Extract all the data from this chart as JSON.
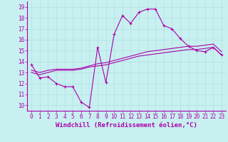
{
  "xlabel": "Windchill (Refroidissement éolien,°C)",
  "bg_color": "#c8f0f0",
  "line_color": "#aa00aa",
  "xlim": [
    -0.5,
    23.5
  ],
  "ylim": [
    9.5,
    19.5
  ],
  "xticks": [
    0,
    1,
    2,
    3,
    4,
    5,
    6,
    7,
    8,
    9,
    10,
    11,
    12,
    13,
    14,
    15,
    16,
    17,
    18,
    19,
    20,
    21,
    22,
    23
  ],
  "yticks": [
    10,
    11,
    12,
    13,
    14,
    15,
    16,
    17,
    18,
    19
  ],
  "line1_x": [
    0,
    1,
    2,
    3,
    4,
    5,
    6,
    7,
    8,
    9,
    10,
    11,
    12,
    13,
    14,
    15,
    16,
    17,
    18,
    19,
    20,
    21,
    22,
    23
  ],
  "line1_y": [
    13.7,
    12.5,
    12.6,
    12.0,
    11.7,
    11.7,
    10.3,
    9.8,
    15.3,
    12.1,
    16.5,
    18.2,
    17.5,
    18.5,
    18.8,
    18.8,
    17.3,
    17.0,
    16.1,
    15.4,
    15.0,
    14.9,
    15.3,
    14.6
  ],
  "line2_x": [
    0,
    1,
    2,
    3,
    4,
    5,
    6,
    7,
    8,
    9,
    10,
    11,
    12,
    13,
    14,
    15,
    16,
    17,
    18,
    19,
    20,
    21,
    22,
    23
  ],
  "line2_y": [
    13.2,
    13.0,
    13.2,
    13.3,
    13.3,
    13.3,
    13.4,
    13.6,
    13.8,
    13.9,
    14.1,
    14.3,
    14.5,
    14.7,
    14.9,
    15.0,
    15.1,
    15.2,
    15.3,
    15.4,
    15.4,
    15.5,
    15.6,
    14.9
  ],
  "line3_x": [
    0,
    1,
    2,
    3,
    4,
    5,
    6,
    7,
    8,
    9,
    10,
    11,
    12,
    13,
    14,
    15,
    16,
    17,
    18,
    19,
    20,
    21,
    22,
    23
  ],
  "line3_y": [
    13.0,
    12.8,
    13.0,
    13.2,
    13.2,
    13.2,
    13.3,
    13.5,
    13.6,
    13.7,
    13.9,
    14.1,
    14.3,
    14.5,
    14.6,
    14.7,
    14.8,
    14.9,
    15.0,
    15.1,
    15.1,
    15.2,
    15.3,
    14.6
  ],
  "linewidth": 0.8,
  "markersize": 3,
  "grid_color": "#aadddd",
  "xlabel_fontsize": 6.5,
  "tick_fontsize": 5.5,
  "tick_color": "#aa00aa",
  "spine_color": "#aa00aa"
}
